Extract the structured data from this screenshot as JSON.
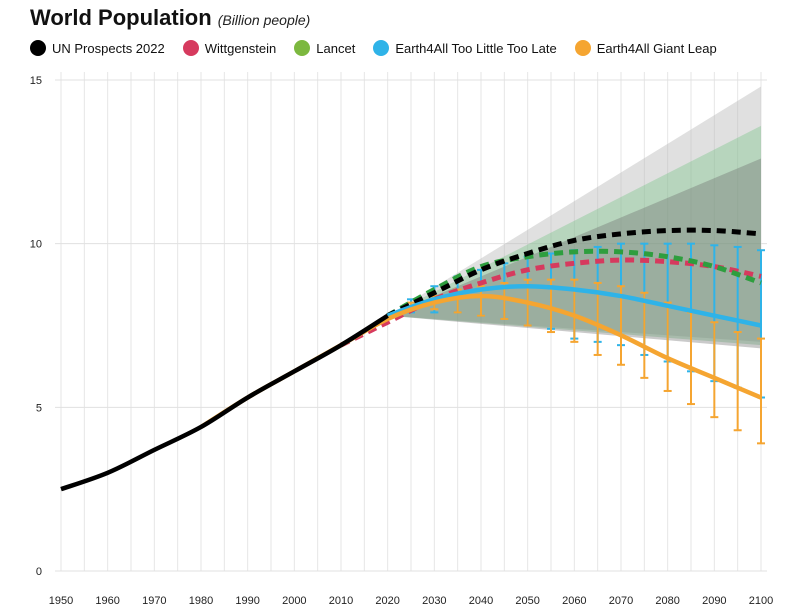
{
  "header": {
    "title": "World Population",
    "subtitle": "(Billion people)"
  },
  "legend": [
    {
      "name": "UN Prospects 2022",
      "color": "#000000"
    },
    {
      "name": "Wittgenstein",
      "color": "#d63a5e"
    },
    {
      "name": "Lancet",
      "color": "#7cb83f"
    },
    {
      "name": "Earth4All Too Little Too Late",
      "color": "#2fb3e8"
    },
    {
      "name": "Earth4All Giant Leap",
      "color": "#f5a531"
    }
  ],
  "chart_data": {
    "type": "line",
    "title": "World Population",
    "subtitle": "(Billion people)",
    "xlabel": "",
    "ylabel": "",
    "xlim": [
      1950,
      2100
    ],
    "ylim": [
      0,
      15
    ],
    "x_ticks": [
      1950,
      1960,
      1970,
      1980,
      1990,
      2000,
      2010,
      2020,
      2030,
      2040,
      2050,
      2060,
      2070,
      2080,
      2090,
      2100
    ],
    "y_ticks": [
      0,
      5,
      10,
      15
    ],
    "grid": true,
    "legend_position": "top",
    "series": [
      {
        "name": "UN Prospects 2022",
        "color": "#000000",
        "style": "solid",
        "x": [
          1950,
          1960,
          1970,
          1980,
          1990,
          2000,
          2010,
          2020
        ],
        "y": [
          2.5,
          3.0,
          3.7,
          4.4,
          5.3,
          6.1,
          6.9,
          7.8
        ]
      },
      {
        "name": "UN Prospects 2022",
        "color": "#000000",
        "style": "dashed",
        "x": [
          2020,
          2030,
          2040,
          2050,
          2060,
          2070,
          2080,
          2090,
          2100
        ],
        "y": [
          7.8,
          8.5,
          9.2,
          9.7,
          10.1,
          10.3,
          10.4,
          10.4,
          10.3
        ]
      },
      {
        "name": "Wittgenstein",
        "color": "#d63a5e",
        "style": "dashed",
        "x": [
          2010,
          2020,
          2030,
          2040,
          2050,
          2060,
          2070,
          2080,
          2090,
          2100
        ],
        "y": [
          6.9,
          7.6,
          8.3,
          8.8,
          9.2,
          9.4,
          9.5,
          9.45,
          9.3,
          9.0
        ]
      },
      {
        "name": "Lancet",
        "color": "#2e9e3e",
        "style": "dashed",
        "x": [
          2020,
          2030,
          2040,
          2050,
          2060,
          2070,
          2080,
          2090,
          2100
        ],
        "y": [
          7.8,
          8.6,
          9.3,
          9.6,
          9.75,
          9.75,
          9.6,
          9.3,
          8.8
        ]
      },
      {
        "name": "Earth4All Too Little Too Late",
        "color": "#2fb3e8",
        "style": "solid",
        "x": [
          2020,
          2030,
          2040,
          2050,
          2060,
          2070,
          2080,
          2090,
          2100
        ],
        "y": [
          7.8,
          8.3,
          8.6,
          8.7,
          8.6,
          8.4,
          8.1,
          7.8,
          7.5
        ]
      },
      {
        "name": "Earth4All Giant Leap",
        "color": "#f5a531",
        "style": "solid",
        "x": [
          1980,
          1990,
          2000,
          2010,
          2020,
          2030,
          2040,
          2050,
          2060,
          2070,
          2080,
          2090,
          2100
        ],
        "y": [
          4.4,
          5.3,
          6.1,
          6.9,
          7.7,
          8.2,
          8.4,
          8.2,
          7.8,
          7.2,
          6.5,
          5.9,
          5.3
        ]
      }
    ],
    "uncertainty_bands": [
      {
        "name": "UN Prospects 2022",
        "color": "#bbbbbb",
        "opacity": 0.45,
        "x": [
          2020,
          2100
        ],
        "lower": [
          7.8,
          7.0
        ],
        "upper": [
          7.8,
          14.8
        ]
      },
      {
        "name": "Lancet",
        "color": "#6bbf7a",
        "opacity": 0.35,
        "x": [
          2020,
          2100
        ],
        "lower": [
          7.8,
          6.9
        ],
        "upper": [
          7.8,
          13.6
        ]
      },
      {
        "name": "Wittgenstein",
        "color": "#666666",
        "opacity": 0.35,
        "x": [
          2020,
          2100
        ],
        "lower": [
          7.8,
          6.8
        ],
        "upper": [
          7.8,
          12.6
        ]
      }
    ],
    "error_bars": [
      {
        "name": "Earth4All Too Little Too Late",
        "color": "#2fb3e8",
        "x": [
          2025,
          2030,
          2035,
          2040,
          2045,
          2050,
          2055,
          2060,
          2065,
          2070,
          2075,
          2080,
          2085,
          2090,
          2095,
          2100
        ],
        "lower": [
          7.9,
          7.9,
          7.9,
          7.8,
          7.7,
          7.5,
          7.4,
          7.1,
          7.0,
          6.9,
          6.6,
          6.4,
          6.1,
          5.8,
          5.6,
          5.3
        ],
        "upper": [
          8.3,
          8.7,
          9.0,
          9.2,
          9.4,
          9.6,
          9.7,
          9.8,
          9.9,
          10.0,
          10.0,
          10.0,
          10.0,
          9.95,
          9.9,
          9.8
        ]
      },
      {
        "name": "Earth4All Giant Leap",
        "color": "#f5a531",
        "x": [
          2025,
          2030,
          2035,
          2040,
          2045,
          2050,
          2055,
          2060,
          2065,
          2070,
          2075,
          2080,
          2085,
          2090,
          2095,
          2100
        ],
        "lower": [
          8.0,
          8.0,
          7.9,
          7.8,
          7.7,
          7.5,
          7.3,
          7.0,
          6.6,
          6.3,
          5.9,
          5.5,
          5.1,
          4.7,
          4.3,
          3.9
        ],
        "upper": [
          8.2,
          8.4,
          8.6,
          8.7,
          8.8,
          8.9,
          8.9,
          8.9,
          8.8,
          8.7,
          8.5,
          8.2,
          7.9,
          7.6,
          7.3,
          7.1
        ]
      }
    ]
  }
}
